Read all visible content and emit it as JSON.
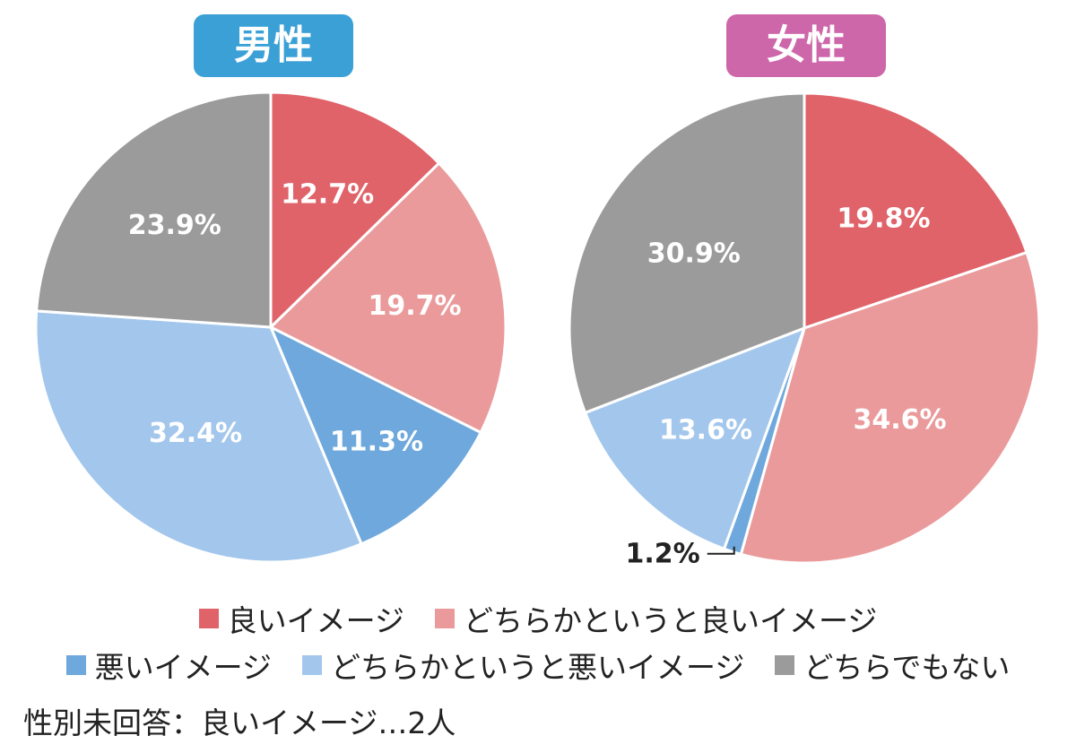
{
  "chart_data": [
    {
      "type": "pie",
      "title": "男性",
      "title_color": "#3aa0d6",
      "slices": [
        {
          "category": "良いイメージ",
          "value": 12.7,
          "label": "12.7%"
        },
        {
          "category": "どちらかというと良いイメージ",
          "value": 19.7,
          "label": "19.7%"
        },
        {
          "category": "悪いイメージ",
          "value": 11.3,
          "label": "11.3%"
        },
        {
          "category": "どちらかというと悪いイメージ",
          "value": 32.4,
          "label": "32.4%"
        },
        {
          "category": "どちらでもない",
          "value": 23.9,
          "label": "23.9%"
        }
      ]
    },
    {
      "type": "pie",
      "title": "女性",
      "title_color": "#cd67aa",
      "slices": [
        {
          "category": "良いイメージ",
          "value": 19.8,
          "label": "19.8%"
        },
        {
          "category": "どちらかというと良いイメージ",
          "value": 34.6,
          "label": "34.6%"
        },
        {
          "category": "悪いイメージ",
          "value": 1.2,
          "label": "1.2%"
        },
        {
          "category": "どちらかというと悪いイメージ",
          "value": 13.6,
          "label": "13.6%"
        },
        {
          "category": "どちらでもない",
          "value": 30.9,
          "label": "30.9%"
        }
      ]
    }
  ],
  "legend": [
    {
      "label": "良いイメージ",
      "color": "#e0636a"
    },
    {
      "label": "どちらかというと良いイメージ",
      "color": "#ea9a9b"
    },
    {
      "label": "悪いイメージ",
      "color": "#6fa8dc"
    },
    {
      "label": "どちらかというと悪いイメージ",
      "color": "#a3c7ec"
    },
    {
      "label": "どちらでもない",
      "color": "#9b9b9b"
    }
  ],
  "footnote": "性別未回答：良いイメージ…2人"
}
